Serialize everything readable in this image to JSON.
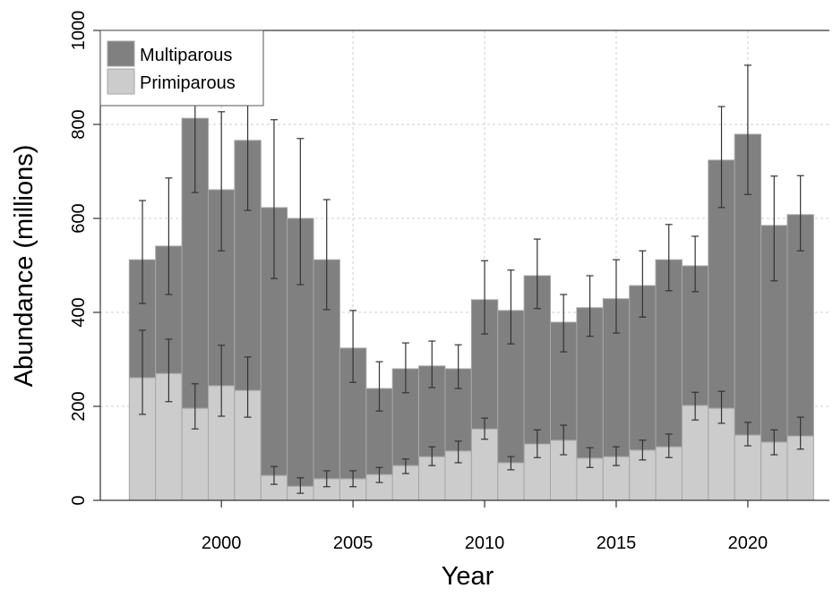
{
  "chart_data": {
    "type": "stacked_bar",
    "x_label": "Year",
    "y_label": "Abundance (millions)",
    "x": [
      1997,
      1998,
      1999,
      2000,
      2001,
      2002,
      2003,
      2004,
      2005,
      2006,
      2007,
      2008,
      2009,
      2010,
      2011,
      2012,
      2013,
      2014,
      2015,
      2016,
      2017,
      2018,
      2019,
      2020,
      2021,
      2022
    ],
    "series": [
      {
        "name": "Multiparous",
        "color": "#808080",
        "values": [
          251,
          271,
          617,
          417,
          532,
          570,
          570,
          466,
          278,
          183,
          206,
          193,
          175,
          275,
          324,
          358,
          251,
          320,
          336,
          350,
          398,
          297,
          528,
          640,
          461,
          471
        ],
        "ci_low": [
          419,
          438,
          655,
          531,
          617,
          472,
          459,
          406,
          251,
          190,
          229,
          240,
          238,
          354,
          333,
          408,
          316,
          349,
          356,
          390,
          446,
          444,
          623,
          651,
          467,
          531
        ],
        "ci_high": [
          638,
          686,
          845,
          827,
          846,
          810,
          770,
          640,
          404,
          295,
          335,
          339,
          331,
          510,
          490,
          556,
          438,
          478,
          512,
          531,
          587,
          562,
          838,
          926,
          690,
          691
        ]
      },
      {
        "name": "Primiparous",
        "color": "#cccccc",
        "values": [
          261,
          270,
          196,
          244,
          234,
          53,
          30,
          46,
          46,
          55,
          74,
          93,
          105,
          152,
          80,
          120,
          128,
          90,
          93,
          107,
          114,
          202,
          196,
          139,
          124,
          137
        ],
        "ci_low": [
          183,
          210,
          152,
          179,
          177,
          34,
          15,
          29,
          29,
          38,
          57,
          74,
          80,
          130,
          65,
          91,
          97,
          70,
          74,
          86,
          91,
          171,
          164,
          116,
          97,
          109
        ],
        "ci_high": [
          362,
          343,
          248,
          330,
          305,
          72,
          48,
          63,
          63,
          70,
          88,
          114,
          126,
          175,
          93,
          150,
          160,
          112,
          114,
          128,
          141,
          230,
          232,
          166,
          150,
          177
        ]
      }
    ],
    "xlim": [
      1995.4,
      2023.1
    ],
    "xticks": [
      2000,
      2005,
      2010,
      2015,
      2020
    ],
    "ylim": [
      0,
      1000
    ],
    "yticks": [
      0,
      200,
      400,
      600,
      800,
      1000
    ],
    "grid": true,
    "legend": "top-left"
  }
}
